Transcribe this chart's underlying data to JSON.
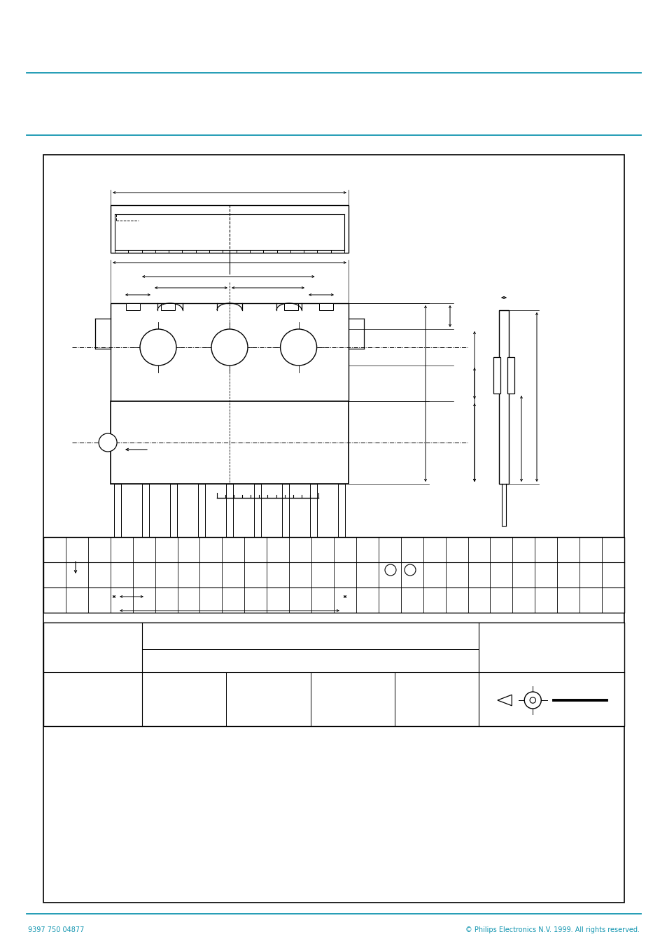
{
  "bg_color": "#ffffff",
  "blk": "#000000",
  "teal": "#1295b0",
  "footer_left": "9397 750 04877",
  "footer_right": "© Philips Electronics N.V. 1999. All rights reserved."
}
